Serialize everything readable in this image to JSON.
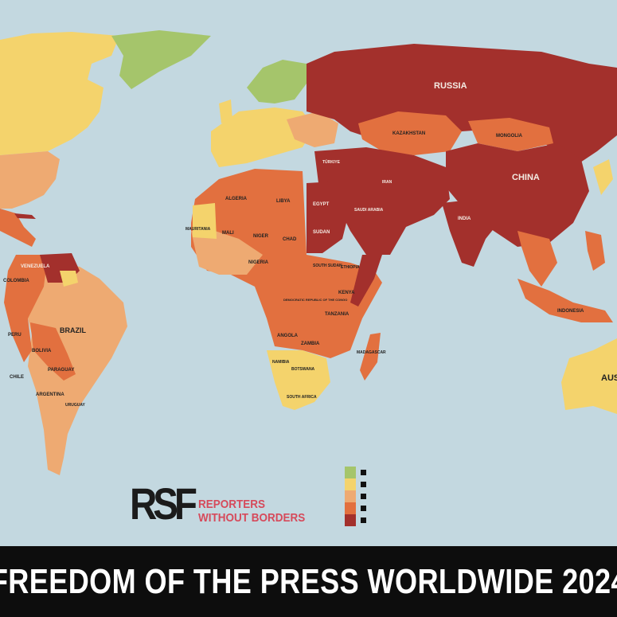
{
  "title": "FREEDOM OF THE PRESS WORLDWIDE 2024",
  "logo": {
    "text": "RSF",
    "org_line1": "REPORTERS",
    "org_line2": "WITHOUT BORDERS"
  },
  "colors": {
    "ocean": "#c3d8e0",
    "good": "#a5c56b",
    "satisfactory": "#f4d36c",
    "problematic": "#eeaa72",
    "difficult": "#e2703f",
    "very_serious": "#a3302c",
    "brand_red": "#d64a5b"
  },
  "legend": [
    "#a5c56b",
    "#f4d36c",
    "#eeaa72",
    "#e2703f",
    "#a3302c"
  ],
  "labels": {
    "russia": "RUSSIA",
    "china": "CHINA",
    "kazakhstan": "KAZAKHSTAN",
    "mongolia": "MONGOLIA",
    "india": "INDIA",
    "brazil": "BRAZIL",
    "venezuela": "VENEZUELA",
    "colombia": "COLOMBIA",
    "peru": "PERU",
    "bolivia": "BOLIVIA",
    "paraguay": "PARAGUAY",
    "argentina": "ARGENTINA",
    "uruguay": "URUGUAY",
    "chile": "CHILE",
    "algeria": "ALGERIA",
    "libya": "LIBYA",
    "egypt": "EGYPT",
    "sudan": "SUDAN",
    "mali": "MALI",
    "niger": "NIGER",
    "chad": "CHAD",
    "nigeria": "NIGERIA",
    "mauritania": "MAURITANIA",
    "ethiopia": "ETHIOPIA",
    "south_sudan": "SOUTH SUDAN",
    "kenya": "KENYA",
    "tanzania": "TANZANIA",
    "angola": "ANGOLA",
    "zambia": "ZAMBIA",
    "namibia": "NAMIBIA",
    "botswana": "BOTSWANA",
    "south_africa": "SOUTH AFRICA",
    "madagascar": "MADAGASCAR",
    "drc": "DEMOCRATIC REPUBLIC OF THE CONGO",
    "turkiye": "TÜRKIYE",
    "iran": "IRAN",
    "saudi_arabia": "SAUDI ARABIA",
    "indonesia": "INDONESIA",
    "australia": "AUS"
  }
}
